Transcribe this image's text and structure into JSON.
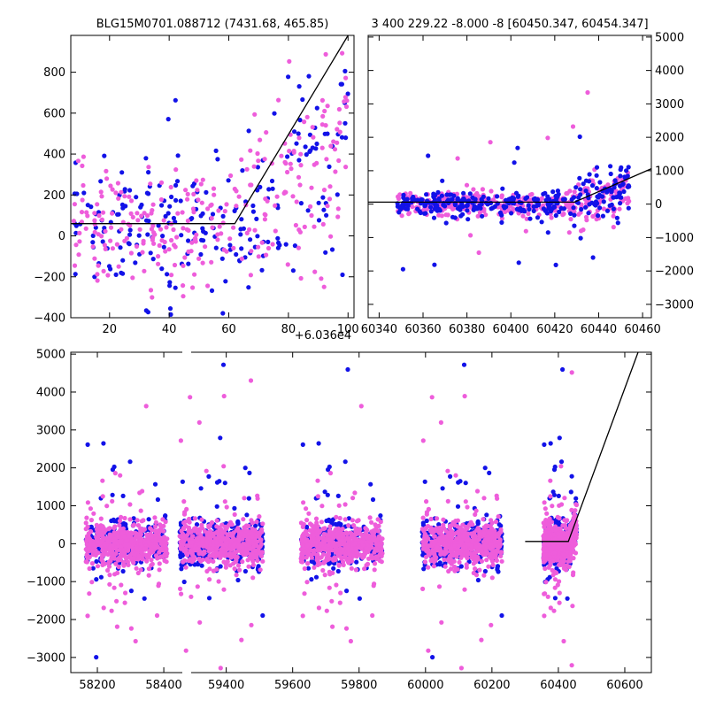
{
  "chart_data": [
    {
      "panel": "top-left",
      "type": "scatter",
      "title": "BLG15M0701.088712 (7431.68, 465.85)",
      "x_offset_label": "+6.036e4",
      "xlim": [
        7,
        102
      ],
      "ylim": [
        -400,
        980
      ],
      "xticks": [
        "20",
        "40",
        "60",
        "80",
        "100"
      ],
      "yticks": [
        "−400",
        "−200",
        "0",
        "200",
        "400",
        "600",
        "800"
      ],
      "grid": false,
      "series": [
        {
          "color": "#ee5ddb",
          "marker": "dot"
        },
        {
          "color": "#1212e8",
          "marker": "dot"
        }
      ],
      "model_line": {
        "color": "#000000",
        "points": [
          [
            7,
            60
          ],
          [
            62,
            60
          ],
          [
            100,
            980
          ]
        ]
      }
    },
    {
      "panel": "top-right",
      "type": "scatter",
      "title": "3 400 229.22 -8.000 -8 [60450.347, 60454.347]",
      "xlim": [
        60335,
        60464
      ],
      "ylim": [
        -3400,
        5050
      ],
      "xticks": [
        "60340",
        "60360",
        "60380",
        "60400",
        "60420",
        "60440",
        "60460"
      ],
      "yticks": [
        "−3000",
        "−2000",
        "−1000",
        "0",
        "1000",
        "2000",
        "3000",
        "4000",
        "5000"
      ],
      "yaxis_side": "right",
      "grid": false,
      "series": [
        {
          "color": "#ee5ddb",
          "marker": "dot"
        },
        {
          "color": "#1212e8",
          "marker": "dot"
        }
      ],
      "model_line": {
        "color": "#000000",
        "points": [
          [
            60335,
            60
          ],
          [
            60429,
            60
          ],
          [
            60464,
            1060
          ]
        ]
      }
    },
    {
      "panel": "bottom",
      "type": "scatter",
      "broken_x_axis": true,
      "xlim": [
        58120,
        60680
      ],
      "ylim": [
        -3400,
        5050
      ],
      "xticks": [
        "58200",
        "58400",
        "59400",
        "59600",
        "59800",
        "60000",
        "60200",
        "60400",
        "60600"
      ],
      "yticks": [
        "−3000",
        "−2000",
        "−1000",
        "0",
        "1000",
        "2000",
        "3000",
        "4000",
        "5000"
      ],
      "grid": false,
      "seasons": [
        [
          58165,
          58410
        ],
        [
          59260,
          59510
        ],
        [
          59625,
          59870
        ],
        [
          59990,
          60230
        ],
        [
          60355,
          60455
        ]
      ],
      "series": [
        {
          "color": "#ee5ddb",
          "marker": "dot"
        },
        {
          "color": "#1212e8",
          "marker": "dot"
        }
      ],
      "model_line": {
        "color": "#000000",
        "points": [
          [
            60300,
            60
          ],
          [
            60430,
            60
          ],
          [
            60640,
            5050
          ]
        ]
      }
    }
  ]
}
